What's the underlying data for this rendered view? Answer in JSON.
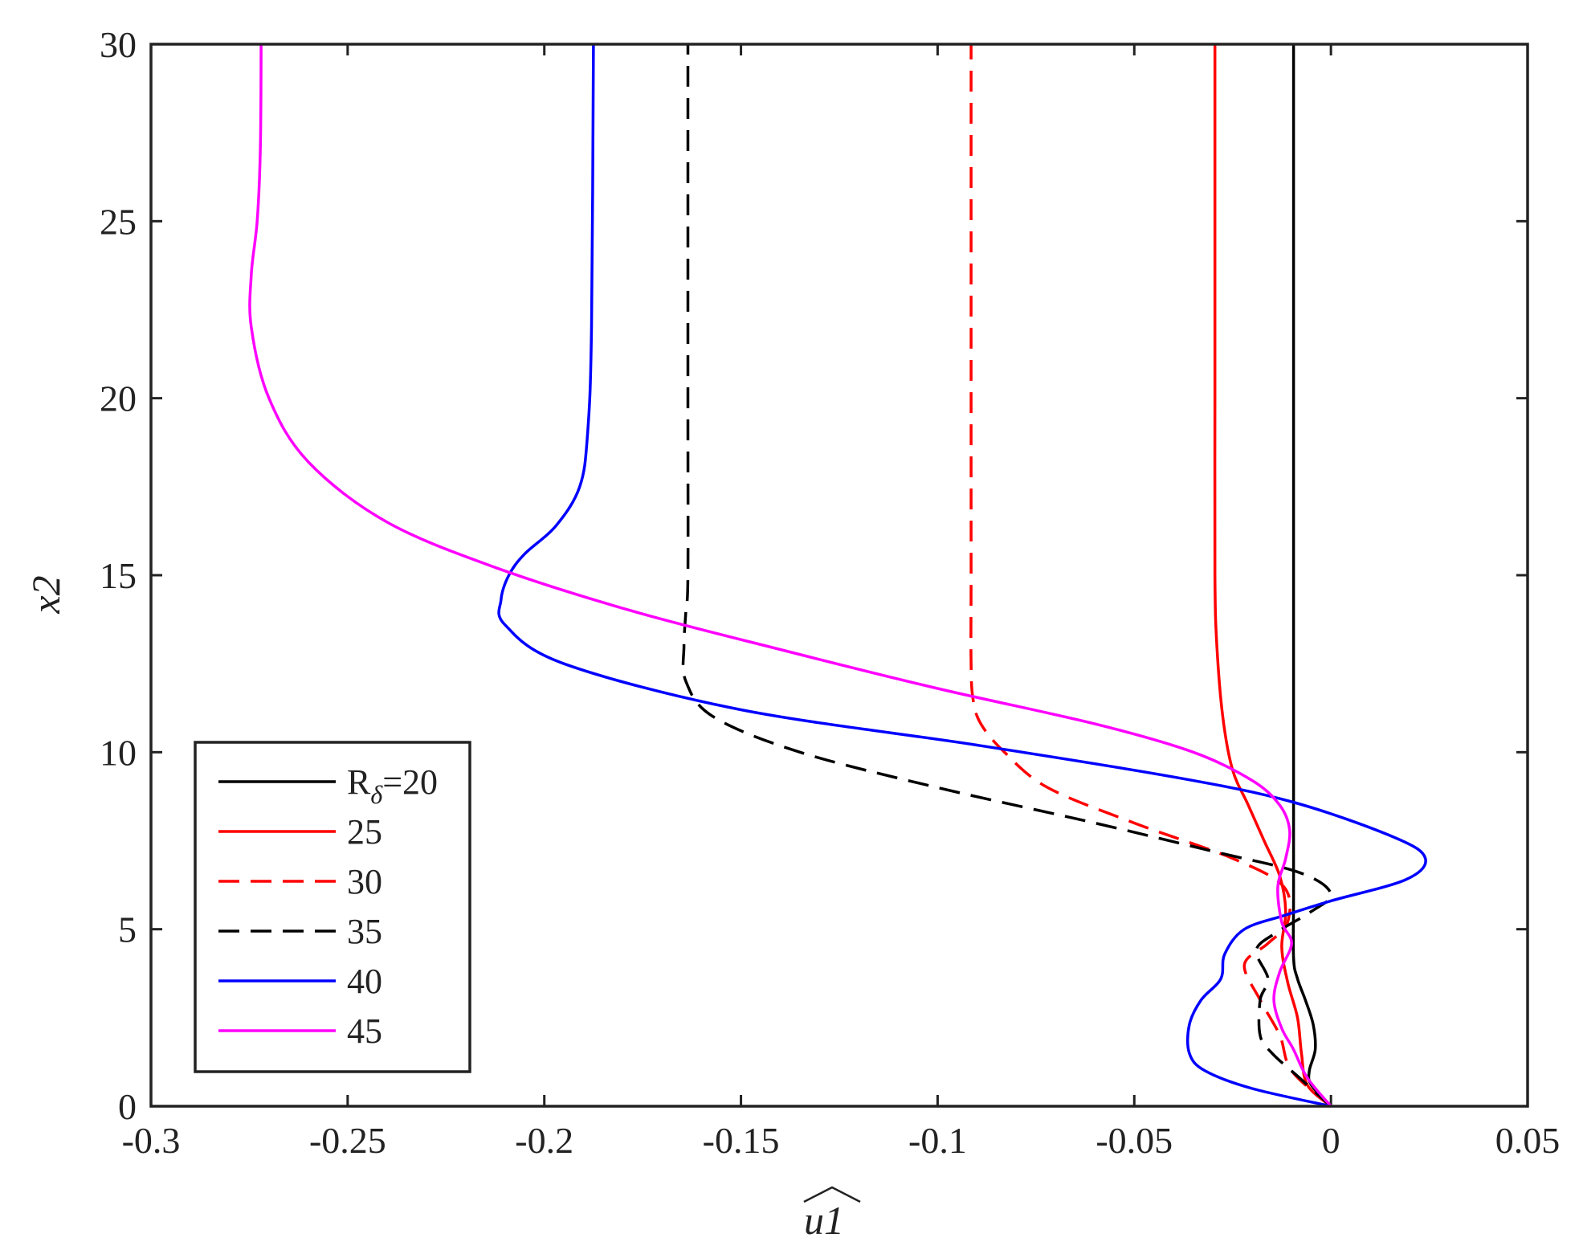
{
  "chart_data": {
    "type": "line",
    "xlabel": "u1",
    "ylabel": "x2",
    "xlim": [
      -0.3,
      0.05
    ],
    "ylim": [
      0,
      30
    ],
    "xticks": [
      -0.3,
      -0.25,
      -0.2,
      -0.15,
      -0.1,
      -0.05,
      0,
      0.05
    ],
    "xtick_labels": [
      "-0.3",
      "-0.25",
      "-0.2",
      "-0.15",
      "-0.1",
      "-0.05",
      "0",
      "0.05"
    ],
    "yticks": [
      0,
      5,
      10,
      15,
      20,
      25,
      30
    ],
    "ytick_labels": [
      "0",
      "5",
      "10",
      "15",
      "20",
      "25",
      "30"
    ],
    "grid": false,
    "legend_position": "bottom-left",
    "series": [
      {
        "name": "R_δ=20",
        "color": "#000000",
        "dash": "solid",
        "points": [
          [
            0,
            0
          ],
          [
            -0.005,
            0.6
          ],
          [
            -0.0055,
            1.0
          ],
          [
            -0.004,
            1.6
          ],
          [
            -0.0045,
            2.3
          ],
          [
            -0.0065,
            3.0
          ],
          [
            -0.0085,
            3.6
          ],
          [
            -0.0095,
            4.2
          ],
          [
            -0.0095,
            6
          ],
          [
            -0.0095,
            10
          ],
          [
            -0.0095,
            20
          ],
          [
            -0.0095,
            30
          ]
        ]
      },
      {
        "name": "25",
        "color": "#ff0000",
        "dash": "solid",
        "points": [
          [
            0,
            0
          ],
          [
            -0.006,
            0.6
          ],
          [
            -0.0075,
            1.5
          ],
          [
            -0.0085,
            2.5
          ],
          [
            -0.011,
            3.5
          ],
          [
            -0.0125,
            4.5
          ],
          [
            -0.0115,
            5.5
          ],
          [
            -0.013,
            6.5
          ],
          [
            -0.017,
            7.5
          ],
          [
            -0.021,
            8.5
          ],
          [
            -0.025,
            9.5
          ],
          [
            -0.0275,
            11
          ],
          [
            -0.029,
            13
          ],
          [
            -0.0295,
            15
          ],
          [
            -0.0295,
            20
          ],
          [
            -0.0295,
            25
          ],
          [
            -0.0295,
            30
          ]
        ]
      },
      {
        "name": "30",
        "color": "#ff0000",
        "dash": "dashed",
        "points": [
          [
            0,
            0
          ],
          [
            -0.01,
            1.0
          ],
          [
            -0.013,
            2.0
          ],
          [
            -0.018,
            3.0
          ],
          [
            -0.022,
            4.0
          ],
          [
            -0.016,
            4.6
          ],
          [
            -0.011,
            5.2
          ],
          [
            -0.012,
            6.2
          ],
          [
            -0.025,
            7.0
          ],
          [
            -0.05,
            8.0
          ],
          [
            -0.072,
            9.0
          ],
          [
            -0.083,
            10.0
          ],
          [
            -0.089,
            10.8
          ],
          [
            -0.091,
            11.5
          ],
          [
            -0.0915,
            12.5
          ],
          [
            -0.0915,
            15
          ],
          [
            -0.0915,
            20
          ],
          [
            -0.0915,
            30
          ]
        ]
      },
      {
        "name": "35",
        "color": "#000000",
        "dash": "dashed",
        "points": [
          [
            0,
            0
          ],
          [
            -0.008,
            0.8
          ],
          [
            -0.015,
            1.5
          ],
          [
            -0.018,
            2.0
          ],
          [
            -0.018,
            3.0
          ],
          [
            -0.016,
            3.6
          ],
          [
            -0.019,
            4.4
          ],
          [
            -0.014,
            4.9
          ],
          [
            -0.005,
            5.5
          ],
          [
            0.0,
            6.0
          ],
          [
            -0.008,
            6.6
          ],
          [
            -0.03,
            7.2
          ],
          [
            -0.06,
            8.0
          ],
          [
            -0.1,
            9.0
          ],
          [
            -0.135,
            10.0
          ],
          [
            -0.157,
            11.0
          ],
          [
            -0.164,
            12.0
          ],
          [
            -0.1645,
            13.0
          ],
          [
            -0.164,
            14.0
          ],
          [
            -0.1635,
            15.0
          ],
          [
            -0.1635,
            20
          ],
          [
            -0.1635,
            30
          ]
        ]
      },
      {
        "name": "40",
        "color": "#0000ff",
        "dash": "solid",
        "points": [
          [
            0,
            0
          ],
          [
            -0.02,
            0.5
          ],
          [
            -0.032,
            1.0
          ],
          [
            -0.036,
            1.5
          ],
          [
            -0.036,
            2.3
          ],
          [
            -0.033,
            3.0
          ],
          [
            -0.028,
            3.6
          ],
          [
            -0.027,
            4.3
          ],
          [
            -0.022,
            5.0
          ],
          [
            -0.0115,
            5.4
          ],
          [
            0.0,
            5.8
          ],
          [
            0.019,
            6.4
          ],
          [
            0.024,
            7.0
          ],
          [
            0.016,
            7.6
          ],
          [
            -0.01,
            8.6
          ],
          [
            -0.04,
            9.3
          ],
          [
            -0.09,
            10.2
          ],
          [
            -0.15,
            11.2
          ],
          [
            -0.195,
            12.5
          ],
          [
            -0.21,
            13.6
          ],
          [
            -0.211,
            14.3
          ],
          [
            -0.209,
            15.0
          ],
          [
            -0.205,
            15.6
          ],
          [
            -0.197,
            16.4
          ],
          [
            -0.191,
            17.5
          ],
          [
            -0.189,
            19.0
          ],
          [
            -0.188,
            22
          ],
          [
            -0.1875,
            30
          ]
        ]
      },
      {
        "name": "45",
        "color": "#ff00ff",
        "dash": "solid",
        "points": [
          [
            0,
            0
          ],
          [
            -0.006,
            0.8
          ],
          [
            -0.0095,
            1.6
          ],
          [
            -0.0125,
            2.2
          ],
          [
            -0.0145,
            3.0
          ],
          [
            -0.013,
            3.8
          ],
          [
            -0.01,
            4.6
          ],
          [
            -0.0125,
            5.2
          ],
          [
            -0.0135,
            6.2
          ],
          [
            -0.0115,
            7.0
          ],
          [
            -0.0105,
            7.8
          ],
          [
            -0.013,
            8.5
          ],
          [
            -0.02,
            9.2
          ],
          [
            -0.035,
            10.0
          ],
          [
            -0.06,
            10.8
          ],
          [
            -0.1,
            11.8
          ],
          [
            -0.14,
            12.9
          ],
          [
            -0.178,
            14.0
          ],
          [
            -0.212,
            15.2
          ],
          [
            -0.24,
            16.5
          ],
          [
            -0.26,
            18.2
          ],
          [
            -0.27,
            20.0
          ],
          [
            -0.2745,
            22.0
          ],
          [
            -0.2745,
            23.5
          ],
          [
            -0.273,
            25.0
          ],
          [
            -0.2722,
            27
          ],
          [
            -0.272,
            30
          ]
        ]
      }
    ]
  }
}
